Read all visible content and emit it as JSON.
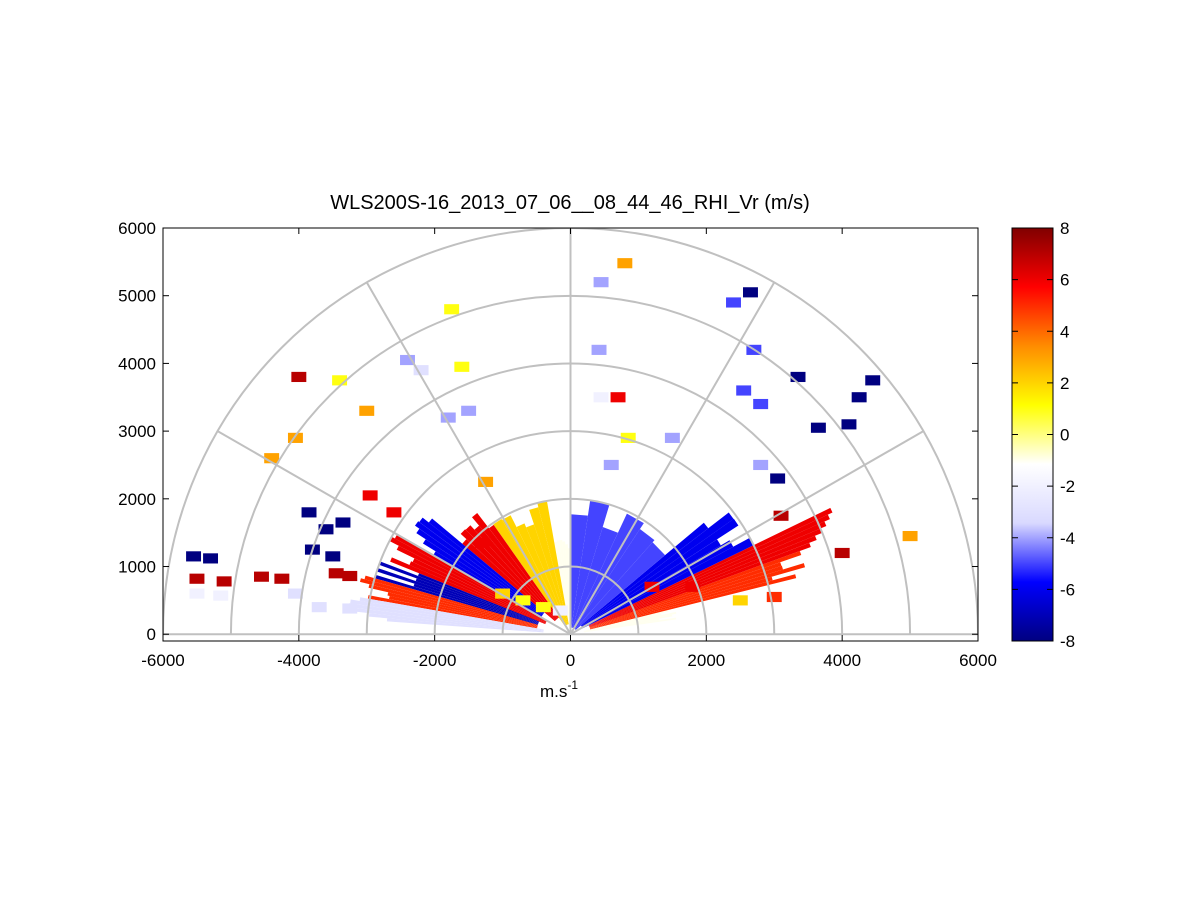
{
  "chart_data": {
    "type": "heatmap",
    "subtype": "polar-rhi-wedge",
    "title": "WLS200S-16_2013_07_06__08_44_46_RHI_Vr (m/s)",
    "xlabel": "m.s",
    "xlabel_superscript": "-1",
    "ylabel": "",
    "xlim": [
      -6000,
      6000
    ],
    "ylim": [
      -100,
      6000
    ],
    "xticks": [
      "-6000",
      "-4000",
      "-2000",
      "0",
      "2000",
      "4000",
      "6000"
    ],
    "yticks": [
      "0",
      "1000",
      "2000",
      "3000",
      "4000",
      "5000",
      "6000"
    ],
    "polar_grid": {
      "ranges": [
        1000,
        2000,
        3000,
        4000,
        5000,
        6000
      ],
      "angles_deg": [
        0,
        30,
        60,
        90,
        120,
        150,
        180
      ]
    },
    "colorbar": {
      "label_ticks": [
        "8",
        "6",
        "4",
        "2",
        "0",
        "-2",
        "-4",
        "-6",
        "-8"
      ],
      "range": [
        -8,
        8
      ],
      "colors": [
        "#000080",
        "#0000ff",
        "#d9d9ff",
        "#ffffff",
        "#ffff00",
        "#ff8c00",
        "#ff0000",
        "#800000"
      ]
    },
    "cells": [
      {
        "x": -5550,
        "y": 1150,
        "v": -8
      },
      {
        "x": -5300,
        "y": 1120,
        "v": -8
      },
      {
        "x": -5500,
        "y": 820,
        "v": 7
      },
      {
        "x": -5100,
        "y": 780,
        "v": 7
      },
      {
        "x": -4550,
        "y": 850,
        "v": 7
      },
      {
        "x": -4250,
        "y": 820,
        "v": 7
      },
      {
        "x": -3450,
        "y": 900,
        "v": 7
      },
      {
        "x": -3250,
        "y": 860,
        "v": 7
      },
      {
        "x": -3600,
        "y": 1550,
        "v": -8
      },
      {
        "x": -3850,
        "y": 1800,
        "v": -8
      },
      {
        "x": -3350,
        "y": 1650,
        "v": -8
      },
      {
        "x": -3800,
        "y": 1250,
        "v": -8
      },
      {
        "x": -3500,
        "y": 1150,
        "v": -8
      },
      {
        "x": -5500,
        "y": 600,
        "v": -2
      },
      {
        "x": -5150,
        "y": 570,
        "v": -2
      },
      {
        "x": -4050,
        "y": 600,
        "v": -3
      },
      {
        "x": -3700,
        "y": 400,
        "v": -3
      },
      {
        "x": -3250,
        "y": 380,
        "v": -3
      },
      {
        "x": -4400,
        "y": 2600,
        "v": 3
      },
      {
        "x": -4050,
        "y": 2900,
        "v": 3
      },
      {
        "x": -3000,
        "y": 3300,
        "v": 3
      },
      {
        "x": -2950,
        "y": 2050,
        "v": 6
      },
      {
        "x": -2600,
        "y": 1800,
        "v": 6
      },
      {
        "x": -4000,
        "y": 3800,
        "v": 7
      },
      {
        "x": -3400,
        "y": 3750,
        "v": 1
      },
      {
        "x": -2400,
        "y": 4050,
        "v": -4
      },
      {
        "x": -2200,
        "y": 3900,
        "v": -3
      },
      {
        "x": -1800,
        "y": 3200,
        "v": -4
      },
      {
        "x": -1500,
        "y": 3300,
        "v": -4
      },
      {
        "x": -1600,
        "y": 3950,
        "v": 1
      },
      {
        "x": -1750,
        "y": 4800,
        "v": 1
      },
      {
        "x": -1250,
        "y": 2250,
        "v": 3
      },
      {
        "x": -1300,
        "y": 1350,
        "v": 6
      },
      {
        "x": 450,
        "y": 5200,
        "v": -4
      },
      {
        "x": 800,
        "y": 5480,
        "v": 3
      },
      {
        "x": 420,
        "y": 4200,
        "v": -4
      },
      {
        "x": 700,
        "y": 3500,
        "v": 6
      },
      {
        "x": 450,
        "y": 3500,
        "v": -2
      },
      {
        "x": 850,
        "y": 2900,
        "v": 1
      },
      {
        "x": 600,
        "y": 2500,
        "v": -4
      },
      {
        "x": 1500,
        "y": 2900,
        "v": -4
      },
      {
        "x": 2400,
        "y": 4900,
        "v": -5
      },
      {
        "x": 2650,
        "y": 5050,
        "v": -8
      },
      {
        "x": 2700,
        "y": 4200,
        "v": -5
      },
      {
        "x": 2550,
        "y": 3600,
        "v": -5
      },
      {
        "x": 2800,
        "y": 3400,
        "v": -5
      },
      {
        "x": 2800,
        "y": 2500,
        "v": -4
      },
      {
        "x": 3350,
        "y": 3800,
        "v": -8
      },
      {
        "x": 4250,
        "y": 3500,
        "v": -8
      },
      {
        "x": 4450,
        "y": 3750,
        "v": -8
      },
      {
        "x": 3650,
        "y": 3050,
        "v": -8
      },
      {
        "x": 4100,
        "y": 3100,
        "v": -8
      },
      {
        "x": 3050,
        "y": 2300,
        "v": -8
      },
      {
        "x": 3100,
        "y": 1750,
        "v": 7
      },
      {
        "x": 4000,
        "y": 1200,
        "v": 7
      },
      {
        "x": 5000,
        "y": 1450,
        "v": 3
      },
      {
        "x": -1000,
        "y": 600,
        "v": 2
      },
      {
        "x": -700,
        "y": 500,
        "v": 1
      },
      {
        "x": -400,
        "y": 400,
        "v": 1
      },
      {
        "x": -150,
        "y": 350,
        "v": -2
      },
      {
        "x": 1200,
        "y": 700,
        "v": 6
      },
      {
        "x": 1800,
        "y": 700,
        "v": 6
      },
      {
        "x": 2500,
        "y": 500,
        "v": 2
      },
      {
        "x": 3000,
        "y": 550,
        "v": 5
      }
    ],
    "fans": [
      {
        "side": "right",
        "a0": 8,
        "a1": 14,
        "r0": 200,
        "r1": 1600,
        "v": -1
      },
      {
        "side": "right",
        "a0": 14,
        "a1": 20,
        "r0": 300,
        "r1": 3600,
        "v": 5
      },
      {
        "side": "right",
        "a0": 20,
        "a1": 26,
        "r0": 300,
        "r1": 4400,
        "v": 6
      },
      {
        "side": "right",
        "a0": 26,
        "a1": 40,
        "r0": 200,
        "r1": 3000,
        "v": -6
      },
      {
        "side": "right",
        "a0": 40,
        "a1": 90,
        "r0": 100,
        "r1": 2000,
        "v": -5
      },
      {
        "side": "left",
        "a0": 90,
        "a1": 100,
        "r0": 100,
        "r1": 1400,
        "v": -1
      },
      {
        "side": "left",
        "a0": 100,
        "a1": 125,
        "r0": 150,
        "r1": 2000,
        "v": 2
      },
      {
        "side": "left",
        "a0": 125,
        "a1": 140,
        "r0": 300,
        "r1": 2300,
        "v": 6
      },
      {
        "side": "left",
        "a0": 140,
        "a1": 150,
        "r0": 500,
        "r1": 2800,
        "v": -6
      },
      {
        "side": "left",
        "a0": 150,
        "a1": 158,
        "r0": 400,
        "r1": 3000,
        "v": 6
      },
      {
        "side": "left",
        "a0": 158,
        "a1": 164,
        "r0": 500,
        "r1": 3000,
        "v": -7
      },
      {
        "side": "left",
        "a0": 164,
        "a1": 170,
        "r0": 500,
        "r1": 3200,
        "v": 5
      },
      {
        "side": "left",
        "a0": 170,
        "a1": 176,
        "r0": 400,
        "r1": 3300,
        "v": -3
      }
    ]
  }
}
